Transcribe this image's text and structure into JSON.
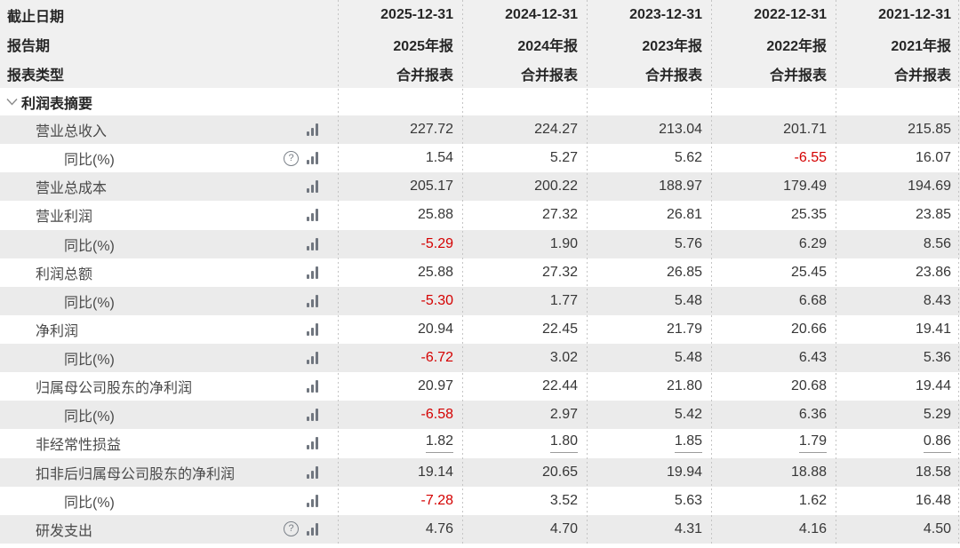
{
  "table": {
    "header": {
      "row_labels": [
        "截止日期",
        "报告期",
        "报表类型"
      ],
      "columns": [
        {
          "date": "2025-12-31",
          "period": "2025年报",
          "report_type": "合并报表"
        },
        {
          "date": "2024-12-31",
          "period": "2024年报",
          "report_type": "合并报表"
        },
        {
          "date": "2023-12-31",
          "period": "2023年报",
          "report_type": "合并报表"
        },
        {
          "date": "2022-12-31",
          "period": "2022年报",
          "report_type": "合并报表"
        },
        {
          "date": "2021-12-31",
          "period": "2021年报",
          "report_type": "合并报表"
        }
      ]
    },
    "section": {
      "title": "利润表摘要"
    },
    "rows": [
      {
        "label": "营业总收入",
        "indent": 1,
        "help": false,
        "chart": true,
        "underline": false,
        "values": [
          "227.72",
          "224.27",
          "213.04",
          "201.71",
          "215.85"
        ]
      },
      {
        "label": "同比(%)",
        "indent": 2,
        "help": true,
        "chart": true,
        "underline": false,
        "values": [
          "1.54",
          "5.27",
          "5.62",
          "-6.55",
          "16.07"
        ]
      },
      {
        "label": "营业总成本",
        "indent": 1,
        "help": false,
        "chart": true,
        "underline": false,
        "values": [
          "205.17",
          "200.22",
          "188.97",
          "179.49",
          "194.69"
        ]
      },
      {
        "label": "营业利润",
        "indent": 1,
        "help": false,
        "chart": true,
        "underline": false,
        "values": [
          "25.88",
          "27.32",
          "26.81",
          "25.35",
          "23.85"
        ]
      },
      {
        "label": "同比(%)",
        "indent": 2,
        "help": false,
        "chart": true,
        "underline": false,
        "values": [
          "-5.29",
          "1.90",
          "5.76",
          "6.29",
          "8.56"
        ]
      },
      {
        "label": "利润总额",
        "indent": 1,
        "help": false,
        "chart": true,
        "underline": false,
        "values": [
          "25.88",
          "27.32",
          "26.85",
          "25.45",
          "23.86"
        ]
      },
      {
        "label": "同比(%)",
        "indent": 2,
        "help": false,
        "chart": true,
        "underline": false,
        "values": [
          "-5.30",
          "1.77",
          "5.48",
          "6.68",
          "8.43"
        ]
      },
      {
        "label": "净利润",
        "indent": 1,
        "help": false,
        "chart": true,
        "underline": false,
        "values": [
          "20.94",
          "22.45",
          "21.79",
          "20.66",
          "19.41"
        ]
      },
      {
        "label": "同比(%)",
        "indent": 2,
        "help": false,
        "chart": true,
        "underline": false,
        "values": [
          "-6.72",
          "3.02",
          "5.48",
          "6.43",
          "5.36"
        ]
      },
      {
        "label": "归属母公司股东的净利润",
        "indent": 1,
        "help": false,
        "chart": true,
        "underline": false,
        "values": [
          "20.97",
          "22.44",
          "21.80",
          "20.68",
          "19.44"
        ]
      },
      {
        "label": "同比(%)",
        "indent": 2,
        "help": false,
        "chart": true,
        "underline": false,
        "values": [
          "-6.58",
          "2.97",
          "5.42",
          "6.36",
          "5.29"
        ]
      },
      {
        "label": "非经常性损益",
        "indent": 1,
        "help": false,
        "chart": true,
        "underline": true,
        "values": [
          "1.82",
          "1.80",
          "1.85",
          "1.79",
          "0.86"
        ]
      },
      {
        "label": "扣非后归属母公司股东的净利润",
        "indent": 1,
        "help": false,
        "chart": true,
        "underline": false,
        "values": [
          "19.14",
          "20.65",
          "19.94",
          "18.88",
          "18.58"
        ]
      },
      {
        "label": "同比(%)",
        "indent": 2,
        "help": false,
        "chart": true,
        "underline": false,
        "values": [
          "-7.28",
          "3.52",
          "5.63",
          "1.62",
          "16.48"
        ]
      },
      {
        "label": "研发支出",
        "indent": 1,
        "help": true,
        "chart": true,
        "underline": false,
        "values": [
          "4.76",
          "4.70",
          "4.31",
          "4.16",
          "4.50"
        ]
      }
    ]
  },
  "icons": {
    "help_glyph": "?",
    "help": "question-circle-icon",
    "chart": "bar-chart-icon",
    "collapse": "chevron-down-icon"
  },
  "colors": {
    "negative_value": "#d40000",
    "row_stripe": "#ebebeb",
    "header_bg": "#f0f0f0",
    "icon_gray": "#70767f",
    "dotted_separator": "#c4c4c4"
  }
}
